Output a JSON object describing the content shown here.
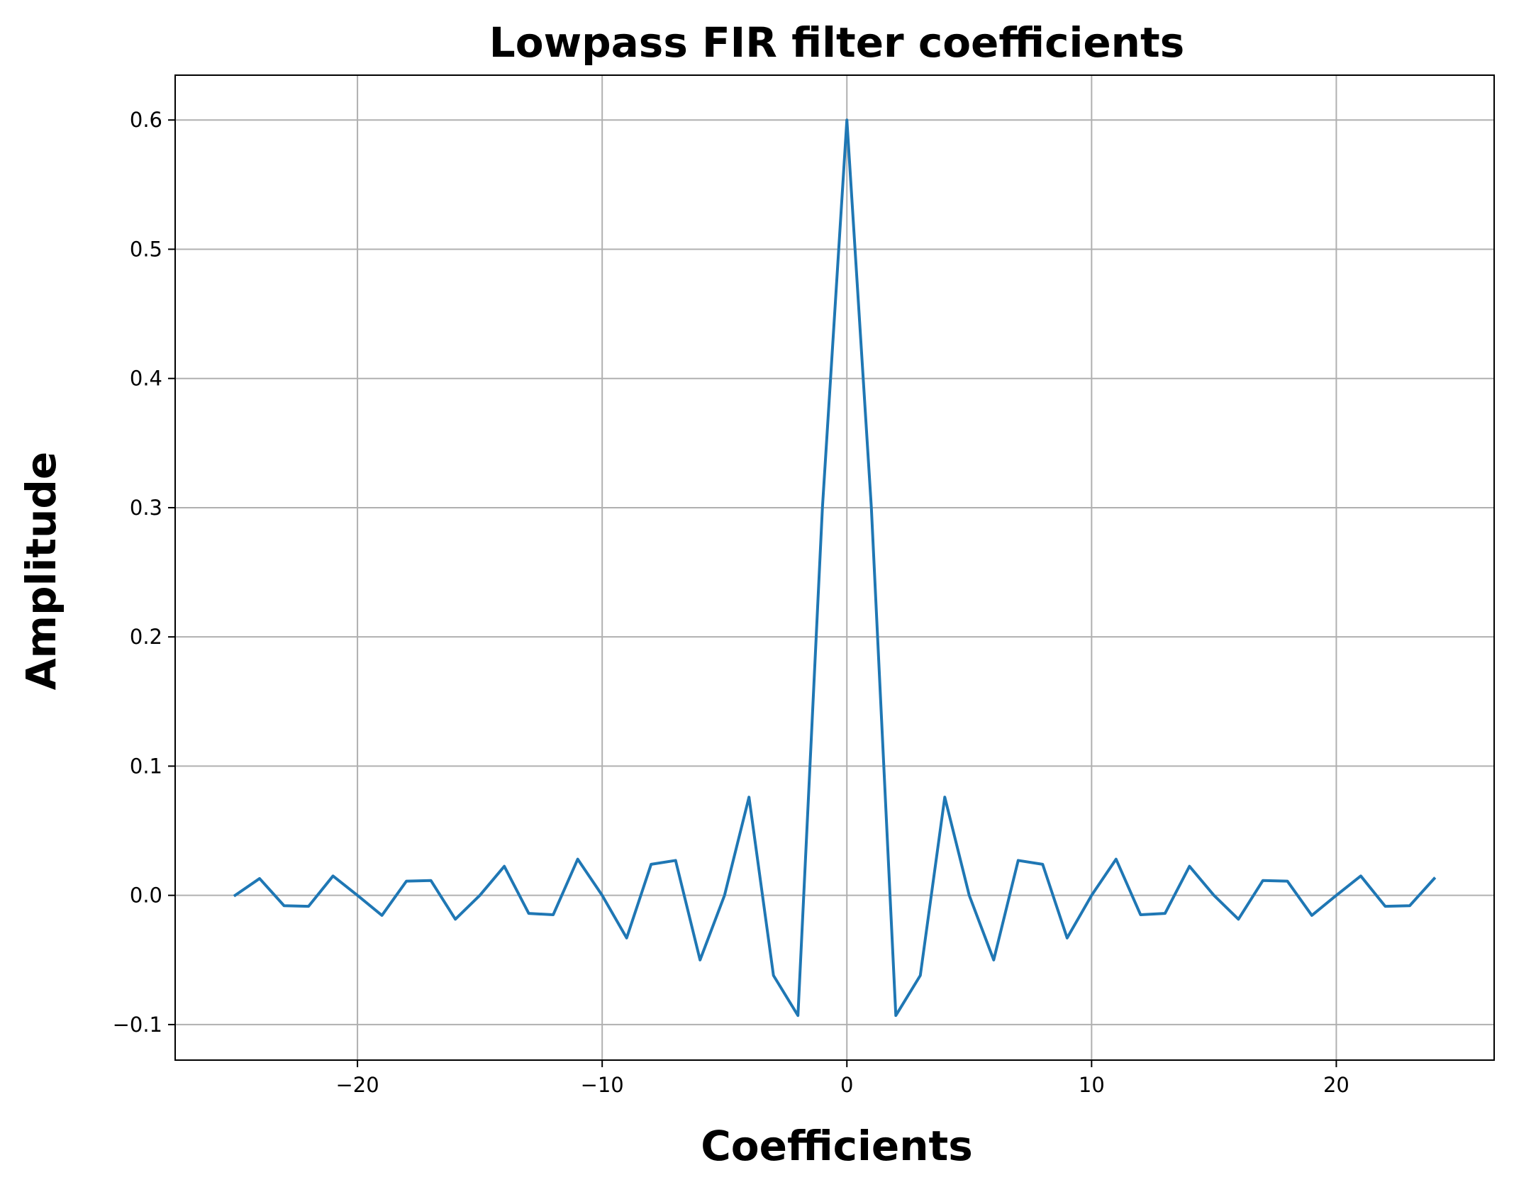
{
  "chart_data": {
    "type": "line",
    "title": "Lowpass FIR filter coefficients",
    "xlabel": "Coefficients",
    "ylabel": "Amplitude",
    "xlim": [
      -27.45,
      26.45
    ],
    "ylim": [
      -0.1275,
      0.6347
    ],
    "xticks": [
      -20,
      -10,
      0,
      10,
      20
    ],
    "xtick_labels": [
      "−20",
      "−10",
      "0",
      "10",
      "20"
    ],
    "yticks": [
      -0.1,
      0.0,
      0.1,
      0.2,
      0.3,
      0.4,
      0.5,
      0.6
    ],
    "ytick_labels": [
      "−0.1",
      "0.0",
      "0.1",
      "0.2",
      "0.3",
      "0.4",
      "0.5",
      "0.6"
    ],
    "grid": true,
    "line_color": "#1f77b4",
    "series": [
      {
        "x": [
          -25,
          -24,
          -23,
          -22,
          -21,
          -20,
          -19,
          -18,
          -17,
          -16,
          -15,
          -14,
          -13,
          -12,
          -11,
          -10,
          -9,
          -8,
          -7,
          -6,
          -5,
          -4,
          -3,
          -2,
          -1,
          0,
          1,
          2,
          3,
          4,
          5,
          6,
          7,
          8,
          9,
          10,
          11,
          12,
          13,
          14,
          15,
          16,
          17,
          18,
          19,
          20,
          21,
          22,
          23,
          24
        ],
        "values": [
          0.0,
          0.013,
          -0.008,
          -0.0085,
          0.015,
          0.0,
          -0.0155,
          0.011,
          0.0115,
          -0.0185,
          0.0,
          0.0225,
          -0.014,
          -0.015,
          0.028,
          0.0,
          -0.033,
          0.024,
          0.027,
          -0.05,
          0.0,
          0.076,
          -0.062,
          -0.093,
          0.3,
          0.6,
          0.3,
          -0.093,
          -0.062,
          0.076,
          0.0,
          -0.05,
          0.027,
          0.024,
          -0.033,
          0.0,
          0.028,
          -0.015,
          -0.014,
          0.0225,
          0.0,
          -0.0185,
          0.0115,
          0.011,
          -0.0155,
          0.0,
          0.015,
          -0.0085,
          -0.008,
          0.013
        ]
      }
    ]
  }
}
